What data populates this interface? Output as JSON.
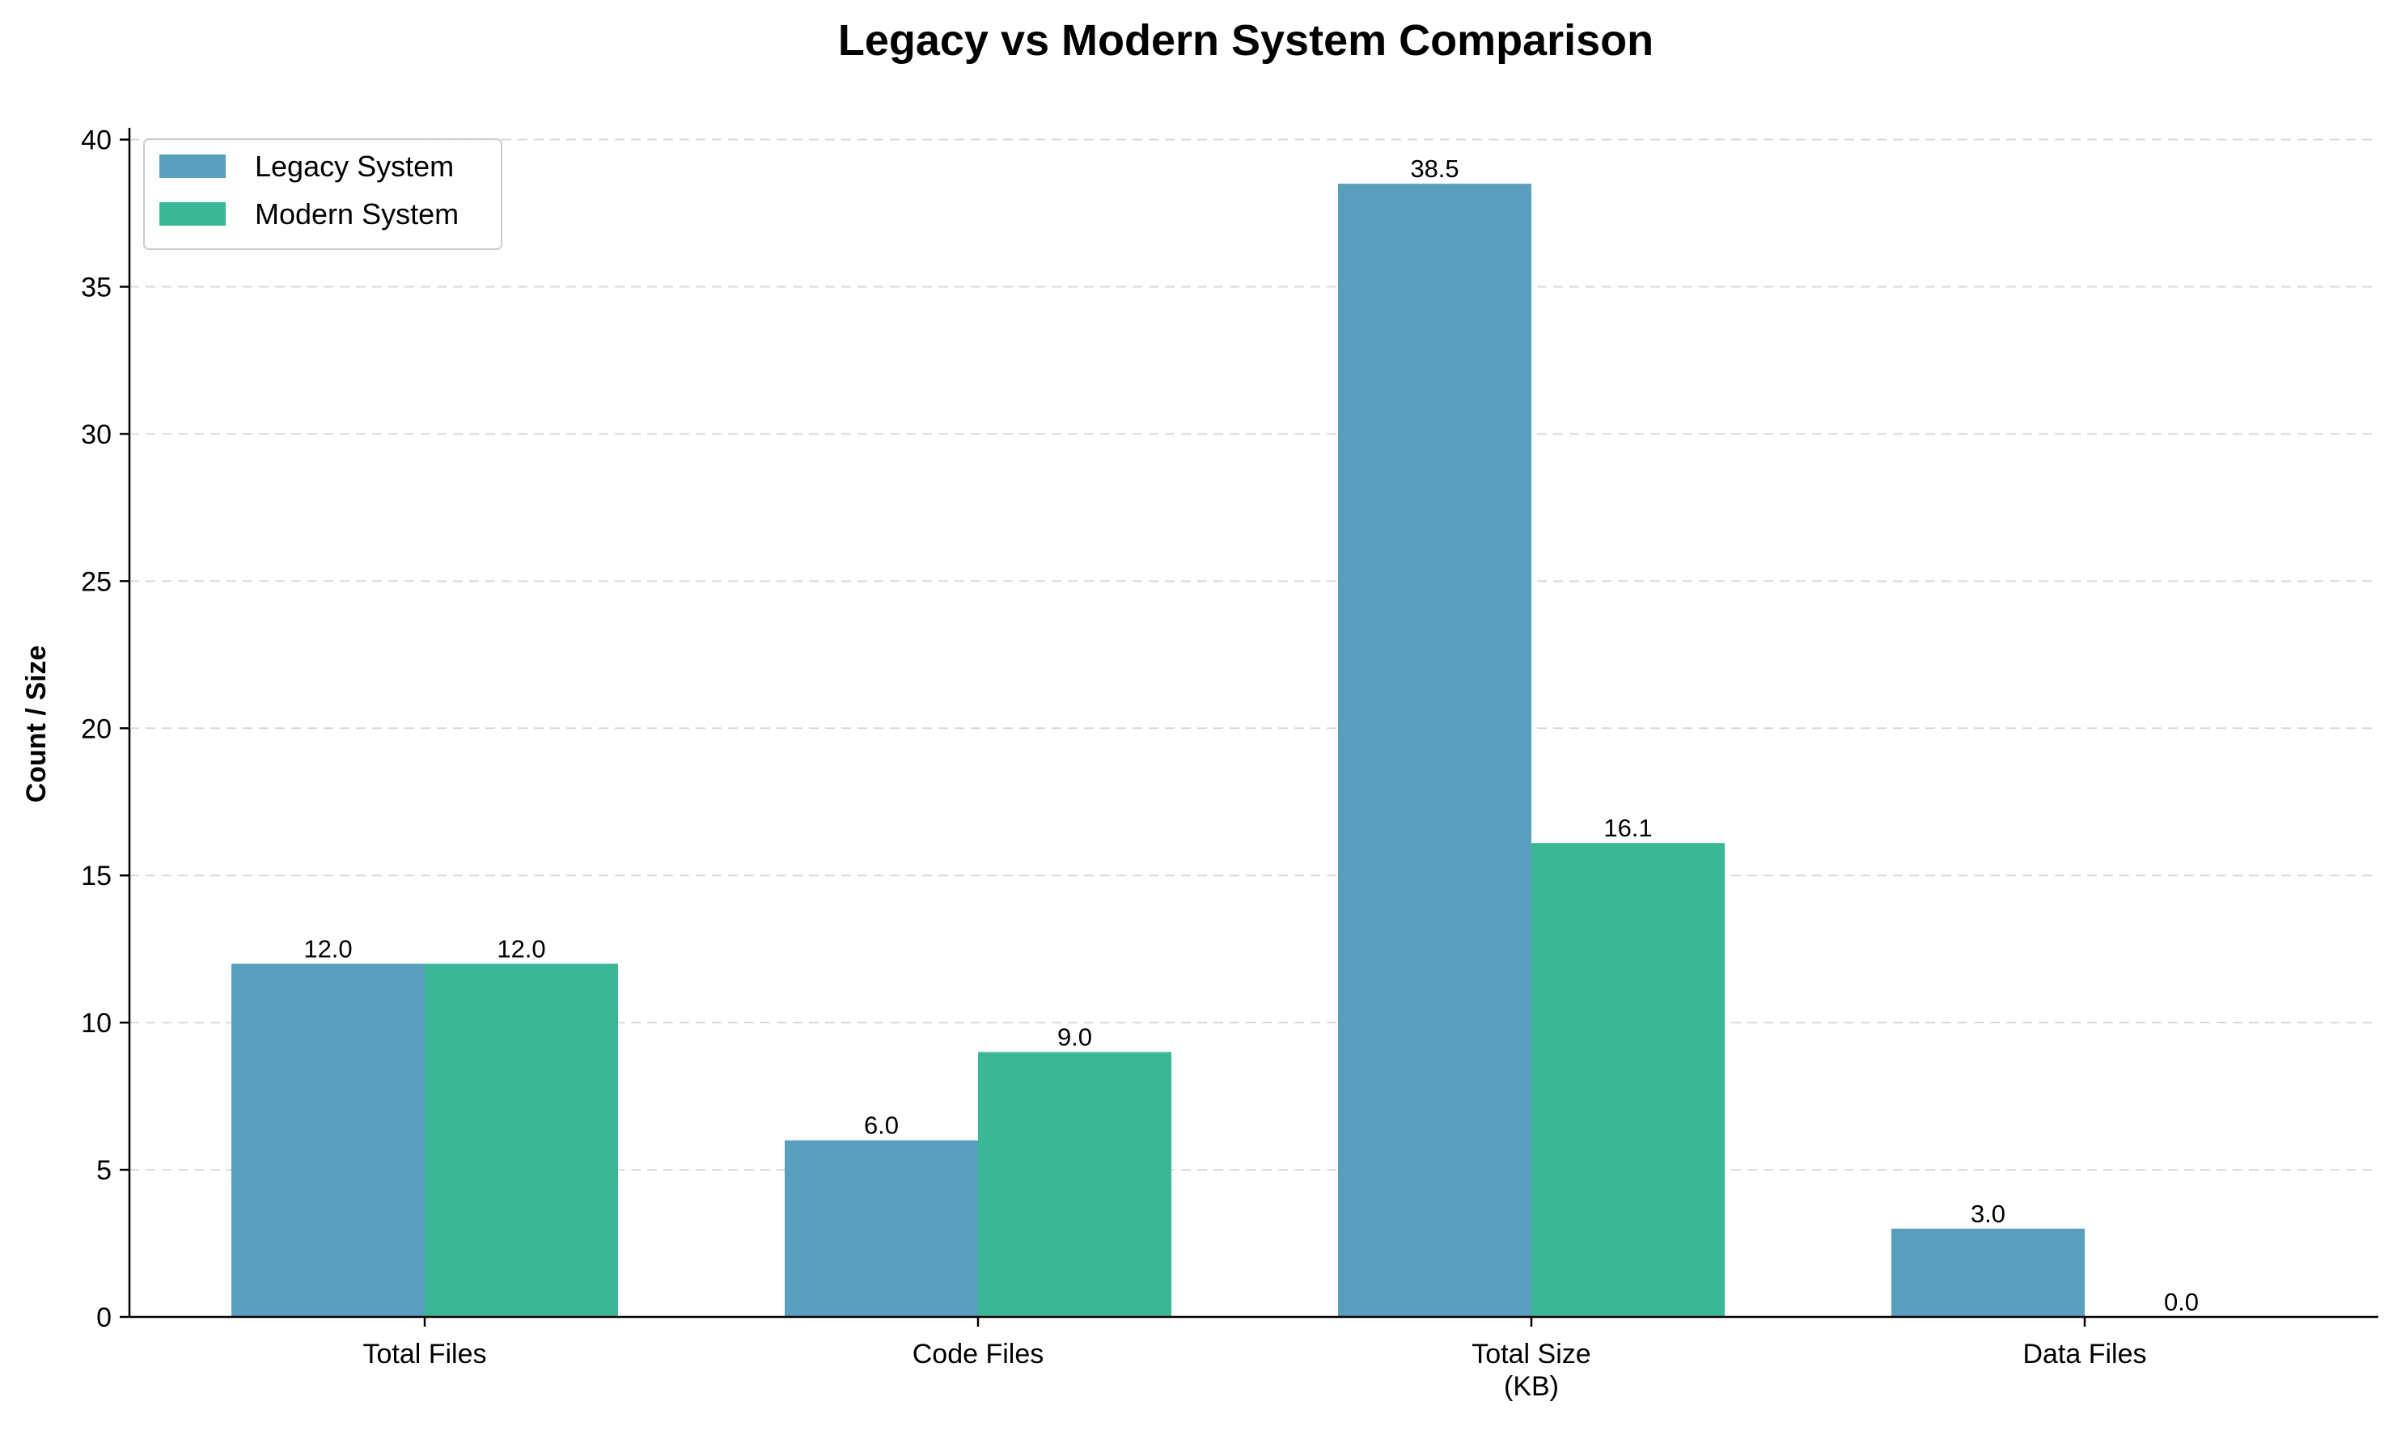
{
  "chart_data": {
    "type": "bar",
    "title": "Legacy vs Modern System Comparison",
    "xlabel": "",
    "ylabel": "Count / Size",
    "ylim": [
      0,
      40.4
    ],
    "yticks": [
      0,
      5,
      10,
      15,
      20,
      25,
      30,
      35,
      40
    ],
    "categories": [
      "Total Files",
      "Code Files",
      "Total Size\n(KB)",
      "Data Files"
    ],
    "series": [
      {
        "name": "Legacy System",
        "color": "#5a9ebd",
        "values": [
          12.0,
          6.0,
          38.5,
          3.0
        ],
        "labels": [
          "12.0",
          "6.0",
          "38.5",
          "3.0"
        ]
      },
      {
        "name": "Modern System",
        "color": "#3ab896",
        "values": [
          12.0,
          9.0,
          16.1,
          0.0
        ],
        "labels": [
          "12.0",
          "9.0",
          "16.1",
          "0.0"
        ]
      }
    ],
    "grid": "horizontal dashed",
    "legend": "top-left"
  }
}
